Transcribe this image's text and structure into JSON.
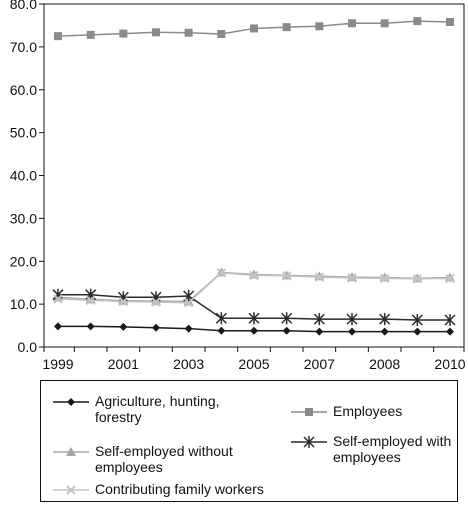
{
  "chart_data": {
    "type": "line",
    "x": [
      "1999",
      "2000",
      "2001",
      "2002",
      "2003",
      "2004",
      "2005",
      "2006",
      "2007",
      "2007",
      "2008",
      "2009",
      "2010"
    ],
    "xtick_labels": [
      "1999",
      "2001",
      "2003",
      "2005",
      "2007",
      "2008",
      "2010"
    ],
    "ylim": [
      0,
      80
    ],
    "ytick_labels": [
      "0.0",
      "10.0",
      "20.0",
      "30.0",
      "40.0",
      "50.0",
      "60.0",
      "70.0",
      "80.0"
    ],
    "grid": false,
    "legend_position": "bottom",
    "series": [
      {
        "name": "Agriculture, hunting, forestry",
        "color": "#1a1a1a",
        "marker": "diamond",
        "values": [
          4.8,
          4.8,
          4.7,
          4.5,
          4.3,
          3.8,
          3.8,
          3.8,
          3.6,
          3.6,
          3.6,
          3.6,
          3.6
        ]
      },
      {
        "name": "Employees",
        "color": "#8a8a8a",
        "marker": "square",
        "values": [
          72.5,
          72.8,
          73.1,
          73.4,
          73.3,
          73.0,
          74.3,
          74.6,
          74.8,
          75.5,
          75.5,
          76.0,
          75.8
        ]
      },
      {
        "name": "Self-employed without employees",
        "color": "#a6a6a6",
        "marker": "triangle",
        "values": [
          11.6,
          11.1,
          10.8,
          10.7,
          10.6,
          17.4,
          16.9,
          16.7,
          16.5,
          16.3,
          16.2,
          16.0,
          16.2
        ]
      },
      {
        "name": "Self-employed with employees",
        "color": "#2a2a2a",
        "marker": "star",
        "values": [
          12.2,
          12.2,
          11.6,
          11.6,
          11.9,
          6.7,
          6.7,
          6.7,
          6.5,
          6.5,
          6.5,
          6.3,
          6.3
        ]
      },
      {
        "name": "Contributing family workers",
        "color": "#c4c4c4",
        "marker": "x",
        "values": [
          11.2,
          10.9,
          10.6,
          10.5,
          10.3,
          17.3,
          16.7,
          16.6,
          16.3,
          16.1,
          16.0,
          15.9,
          16.0
        ]
      }
    ]
  }
}
